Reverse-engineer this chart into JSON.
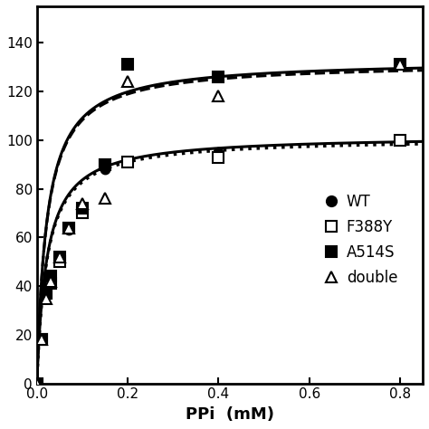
{
  "xlabel": "PPi  (mM)",
  "xlim": [
    0,
    0.85
  ],
  "ylim": [
    0,
    155
  ],
  "yticks": [
    0,
    20,
    40,
    60,
    80,
    100,
    120,
    140
  ],
  "xticks": [
    0,
    0.2,
    0.4,
    0.6,
    0.8
  ],
  "background_color": "#ffffff",
  "series": [
    {
      "key": "WT",
      "x_data": [
        0.0,
        0.01,
        0.02,
        0.03,
        0.05,
        0.07,
        0.1,
        0.15,
        0.2,
        0.4,
        0.8
      ],
      "y_data": [
        0.0,
        18.0,
        36.0,
        42.0,
        52.0,
        63.0,
        71.0,
        88.0,
        91.0,
        95.0,
        100.0
      ],
      "Vmax": 102.0,
      "Km": 0.022,
      "linestyle": "solid",
      "linewidth": 2.2,
      "marker": "o",
      "markerfacecolor": "black",
      "markeredgecolor": "black",
      "markersize": 7,
      "label": "WT"
    },
    {
      "key": "F388Y",
      "x_data": [
        0.0,
        0.01,
        0.02,
        0.03,
        0.05,
        0.07,
        0.1,
        0.15,
        0.2,
        0.4,
        0.8
      ],
      "y_data": [
        0.0,
        18.0,
        37.0,
        41.0,
        50.0,
        64.0,
        70.0,
        90.0,
        91.0,
        93.0,
        100.0
      ],
      "Vmax": 101.0,
      "Km": 0.022,
      "linestyle": "dotted",
      "linewidth": 2.5,
      "marker": "s",
      "markerfacecolor": "white",
      "markeredgecolor": "black",
      "markersize": 8,
      "label": "F388Y"
    },
    {
      "key": "A514S",
      "x_data": [
        0.0,
        0.01,
        0.02,
        0.03,
        0.05,
        0.07,
        0.1,
        0.15,
        0.2,
        0.4,
        0.8
      ],
      "y_data": [
        0.0,
        18.0,
        37.0,
        44.0,
        52.0,
        64.0,
        72.0,
        90.0,
        131.0,
        126.0,
        131.0
      ],
      "Vmax": 132.0,
      "Km": 0.022,
      "linestyle": "dashed",
      "linewidth": 2.2,
      "marker": "s",
      "markerfacecolor": "black",
      "markeredgecolor": "black",
      "markersize": 8,
      "label": "A514S"
    },
    {
      "key": "double",
      "x_data": [
        0.0,
        0.01,
        0.02,
        0.03,
        0.05,
        0.07,
        0.1,
        0.15,
        0.2,
        0.4,
        0.8
      ],
      "y_data": [
        0.0,
        18.0,
        35.0,
        42.0,
        52.0,
        64.0,
        74.0,
        76.0,
        124.0,
        118.0,
        131.0
      ],
      "Vmax": 133.0,
      "Km": 0.022,
      "linestyle": "solid",
      "linewidth": 2.2,
      "marker": "^",
      "markerfacecolor": "white",
      "markeredgecolor": "black",
      "markersize": 9,
      "label": "double"
    }
  ],
  "legend_labels": [
    "WT",
    "F388Y",
    "A514S",
    "double"
  ],
  "legend_markers": [
    "o",
    "s",
    "s",
    "^"
  ],
  "legend_mfc": [
    "black",
    "white",
    "black",
    "white"
  ],
  "legend_linestyles": [
    "solid",
    "dotted",
    "dashed",
    "solid"
  ]
}
